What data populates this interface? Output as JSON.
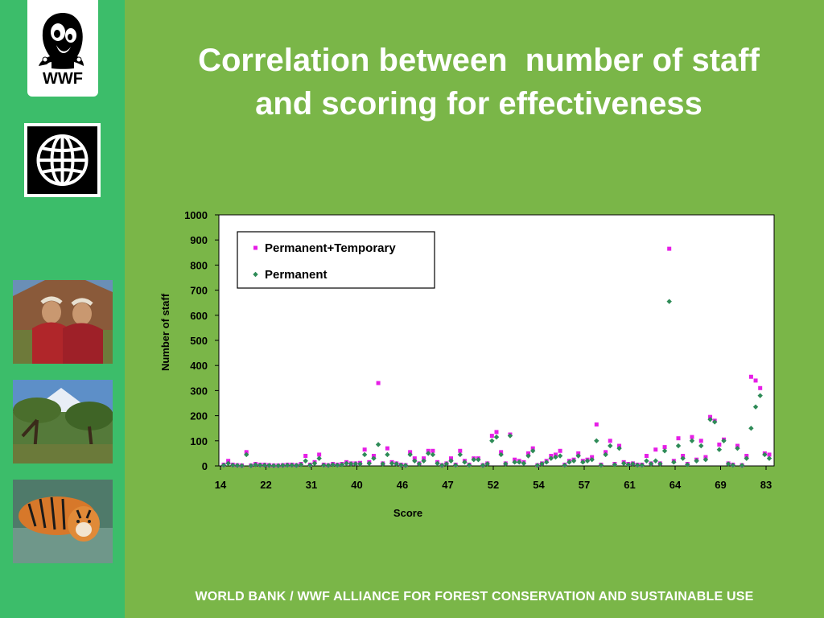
{
  "title_lines": [
    "Correlation between  number of staff",
    "and scoring for effectiveness"
  ],
  "footer": "WORLD BANK / WWF ALLIANCE FOR FOREST CONSERVATION AND SUSTAINABLE USE",
  "logo_text": "WWF",
  "colors": {
    "background": "#7ab648",
    "sidebar": "#3cbd6a",
    "series1": "#e61ee6",
    "series2": "#2e8b57"
  },
  "chart_data": {
    "type": "scatter",
    "title": "",
    "xlabel": "Score",
    "ylabel": "Number of staff",
    "ylim": [
      0,
      1000
    ],
    "yticks": [
      0,
      100,
      200,
      300,
      400,
      500,
      600,
      700,
      800,
      900,
      1000
    ],
    "x_tick_labels": [
      "14",
      "22",
      "31",
      "40",
      "46",
      "47",
      "52",
      "54",
      "57",
      "61",
      "64",
      "69",
      "83"
    ],
    "n_points": 121,
    "legend_position": "top-left",
    "grid": false,
    "series": [
      {
        "name": "Permanent+Temporary",
        "marker": "square",
        "color": "#e61ee6",
        "values": [
          5,
          20,
          5,
          3,
          2,
          55,
          2,
          8,
          5,
          5,
          3,
          2,
          2,
          3,
          5,
          5,
          3,
          8,
          40,
          5,
          15,
          45,
          5,
          3,
          8,
          5,
          8,
          15,
          10,
          10,
          12,
          65,
          15,
          40,
          330,
          10,
          70,
          15,
          10,
          5,
          3,
          55,
          30,
          10,
          30,
          60,
          60,
          15,
          3,
          10,
          30,
          5,
          60,
          20,
          5,
          30,
          30,
          3,
          10,
          120,
          135,
          55,
          10,
          125,
          25,
          20,
          15,
          50,
          70,
          3,
          10,
          20,
          40,
          45,
          60,
          5,
          20,
          25,
          50,
          20,
          25,
          35,
          165,
          5,
          55,
          100,
          8,
          80,
          15,
          8,
          10,
          5,
          5,
          40,
          10,
          65,
          10,
          75,
          865,
          20,
          110,
          40,
          8,
          115,
          25,
          100,
          35,
          195,
          180,
          85,
          105,
          10,
          5,
          80,
          3,
          40,
          355,
          340,
          310,
          50,
          45
        ]
      },
      {
        "name": "Permanent",
        "marker": "diamond",
        "color": "#2e8b57",
        "values": [
          3,
          10,
          3,
          2,
          1,
          45,
          1,
          5,
          3,
          3,
          2,
          1,
          1,
          2,
          3,
          3,
          2,
          5,
          20,
          3,
          10,
          30,
          3,
          2,
          5,
          3,
          5,
          10,
          8,
          8,
          8,
          45,
          10,
          30,
          85,
          8,
          45,
          10,
          8,
          3,
          2,
          45,
          20,
          8,
          20,
          50,
          45,
          10,
          2,
          8,
          20,
          3,
          45,
          15,
          3,
          25,
          25,
          2,
          8,
          100,
          115,
          45,
          8,
          120,
          15,
          15,
          10,
          40,
          60,
          2,
          8,
          15,
          30,
          35,
          40,
          3,
          15,
          20,
          40,
          15,
          20,
          25,
          100,
          3,
          45,
          80,
          5,
          70,
          10,
          5,
          8,
          3,
          3,
          20,
          8,
          20,
          8,
          60,
          655,
          15,
          80,
          30,
          5,
          100,
          20,
          80,
          25,
          185,
          175,
          65,
          100,
          8,
          3,
          70,
          2,
          30,
          150,
          235,
          280,
          45,
          30
        ]
      }
    ]
  }
}
